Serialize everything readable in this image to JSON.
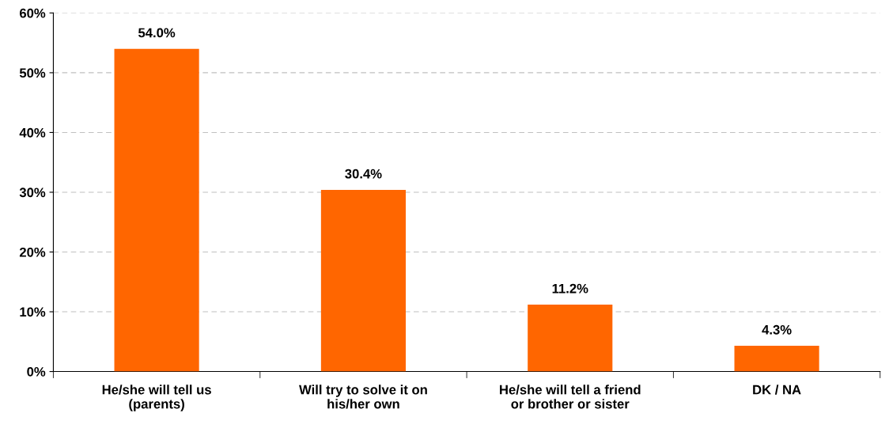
{
  "chart_data": {
    "type": "bar",
    "categories": [
      "He/she will tell us\n(parents)",
      "Will try to solve it on\nhis/her own",
      "He/she will tell a friend\nor brother or sister",
      "DK / NA"
    ],
    "values": [
      54.0,
      30.4,
      11.2,
      4.3
    ],
    "value_labels": [
      "54.0%",
      "30.4%",
      "11.2%",
      "4.3%"
    ],
    "color": "#ff6600",
    "ylim": [
      0,
      60
    ],
    "yticks": [
      {
        "value": 0,
        "label": "0%"
      },
      {
        "value": 10,
        "label": "10%"
      },
      {
        "value": 20,
        "label": "20%"
      },
      {
        "value": 30,
        "label": "30%"
      },
      {
        "value": 40,
        "label": "40%"
      },
      {
        "value": 50,
        "label": "50%"
      },
      {
        "value": 60,
        "label": "60%"
      }
    ],
    "grid": "y"
  }
}
